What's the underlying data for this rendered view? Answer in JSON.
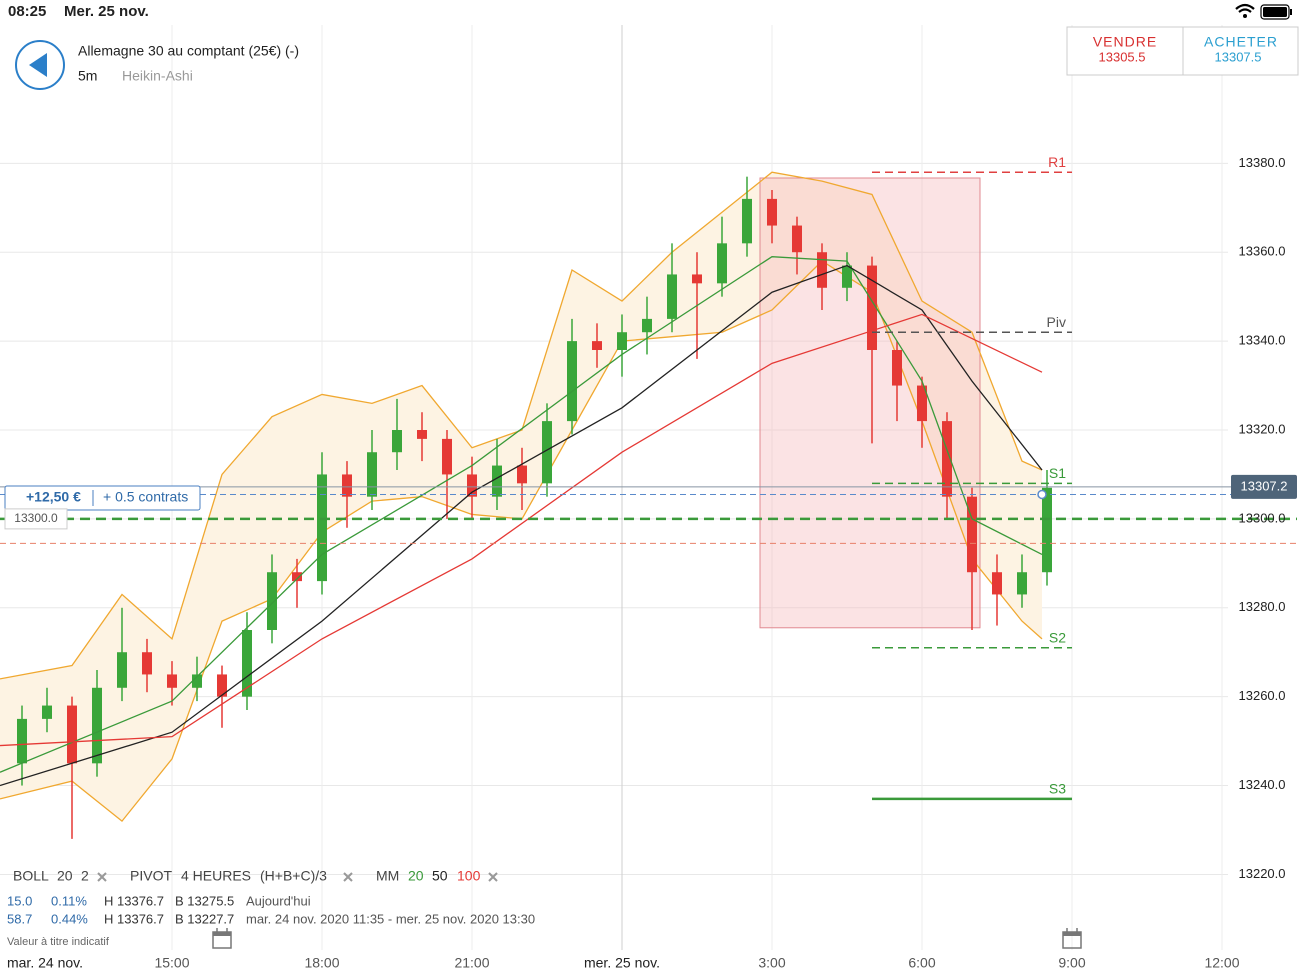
{
  "status_bar": {
    "time": "08:25",
    "date": "Mer. 25 nov."
  },
  "header": {
    "title": "Allemagne 30 au comptant (25€) (-)",
    "interval": "5m",
    "chart_style": "Heikin-Ashi",
    "sell_label": "VENDRE",
    "sell_price": "13305.5",
    "buy_label": "ACHETER",
    "buy_price": "13307.5"
  },
  "position": {
    "pnl": "+12,50 €",
    "size": "+ 0.5 contrats",
    "entry_label": "13300.0"
  },
  "legend": {
    "boll": [
      "BOLL",
      "20",
      "2"
    ],
    "pivot": [
      "PIVOT",
      "4 HEURES",
      "(H+B+C)/3"
    ],
    "mm": "MM",
    "row1": [
      "15.0",
      "0.11%",
      "H 13376.7",
      "B 13275.5",
      "Aujourd'hui"
    ],
    "row2": [
      "58.7",
      "0.44%",
      "H 13376.7",
      "B 13227.7",
      "mar. 24 nov. 2020 11:35 - mer. 25 nov. 2020 13:30"
    ],
    "note": "Valeur à titre indicatif"
  },
  "chart_data": {
    "type": "candlestick",
    "date_left": "mar. 24 nov.",
    "xlim": [
      11.56,
      37.5
    ],
    "ylim": [
      13203,
      13410
    ],
    "xticks": [
      {
        "value": 15,
        "label": "15:00"
      },
      {
        "value": 18,
        "label": "18:00"
      },
      {
        "value": 21,
        "label": "21:00"
      },
      {
        "value": 24,
        "label": "mer. 25 nov."
      },
      {
        "value": 27,
        "label": "3:00"
      },
      {
        "value": 30,
        "label": "6:00"
      },
      {
        "value": 33,
        "label": "9:00"
      },
      {
        "value": 36,
        "label": "12:00"
      }
    ],
    "yticks": [
      {
        "value": 13220,
        "label": "13220.0"
      },
      {
        "value": 13240,
        "label": "13240.0"
      },
      {
        "value": 13260,
        "label": "13260.0"
      },
      {
        "value": 13280,
        "label": "13280.0"
      },
      {
        "value": 13300,
        "label": "13300.0"
      },
      {
        "value": 13320,
        "label": "13320.0"
      },
      {
        "value": 13340,
        "label": "13340.0"
      },
      {
        "value": 13360,
        "label": "13360.0"
      },
      {
        "value": 13380,
        "label": "13380.0"
      }
    ],
    "grid": true,
    "up_color": "#3aa63a",
    "down_color": "#e53935",
    "t": [
      12,
      12.5,
      13,
      13.5,
      14,
      14.5,
      15,
      15.5,
      16,
      16.5,
      17,
      17.5,
      18,
      18.5,
      19,
      19.5,
      20,
      20.5,
      21,
      21.5,
      22,
      22.5,
      23,
      23.5,
      24,
      24.5,
      25,
      25.5,
      26,
      26.5,
      27,
      27.5,
      28,
      28.5,
      29,
      29.5,
      30,
      30.5,
      31,
      31.5,
      32,
      32.5
    ],
    "open": [
      13245,
      13255,
      13258,
      13245,
      13262,
      13270,
      13265,
      13262,
      13265,
      13260,
      13275,
      13288,
      13286,
      13310,
      13305,
      13315,
      13320,
      13318,
      13310,
      13305,
      13312,
      13308,
      13322,
      13340,
      13338,
      13342,
      13345,
      13355,
      13353,
      13362,
      13372,
      13366,
      13360,
      13352,
      13357,
      13338,
      13330,
      13322,
      13305,
      13288,
      13283,
      13288
    ],
    "high": [
      13258,
      13262,
      13260,
      13266,
      13280,
      13273,
      13268,
      13269,
      13267,
      13279,
      13292,
      13291,
      13315,
      13313,
      13320,
      13327,
      13324,
      13320,
      13314,
      13318,
      13316,
      13326,
      13345,
      13344,
      13346,
      13350,
      13362,
      13360,
      13368,
      13377,
      13374,
      13368,
      13362,
      13360,
      13359,
      13340,
      13332,
      13324,
      13307,
      13292,
      13292,
      13311
    ],
    "low": [
      13240,
      13252,
      13228,
      13242,
      13259,
      13261,
      13258,
      13259,
      13253,
      13257,
      13272,
      13280,
      13283,
      13298,
      13302,
      13311,
      13313,
      13300,
      13300,
      13302,
      13302,
      13305,
      13319,
      13334,
      13332,
      13337,
      13342,
      13336,
      13350,
      13359,
      13362,
      13355,
      13347,
      13349,
      13317,
      13322,
      13316,
      13300,
      13275,
      13276,
      13280,
      13285
    ],
    "close": [
      13255,
      13258,
      13245,
      13262,
      13270,
      13265,
      13262,
      13265,
      13260,
      13275,
      13288,
      13286,
      13310,
      13305,
      13315,
      13320,
      13318,
      13310,
      13305,
      13312,
      13308,
      13322,
      13340,
      13338,
      13342,
      13345,
      13355,
      13353,
      13362,
      13372,
      13366,
      13360,
      13352,
      13357,
      13338,
      13330,
      13322,
      13305,
      13288,
      13283,
      13288,
      13307
    ],
    "boll": {
      "color": "#f0a830",
      "fill": "#fdf3e3",
      "t": [
        11.56,
        13,
        14,
        15,
        16,
        17,
        18,
        19,
        20,
        21,
        22,
        23,
        24,
        25,
        26,
        27,
        28,
        29,
        30,
        31,
        32,
        32.4
      ],
      "upper": [
        13264,
        13267,
        13283,
        13273,
        13310,
        13323,
        13328,
        13326,
        13330,
        13316,
        13320,
        13356,
        13349,
        13360,
        13369,
        13378,
        13376,
        13373,
        13349,
        13342,
        13313,
        13311
      ],
      "lower": [
        13237,
        13241,
        13232,
        13246,
        13277,
        13282,
        13297,
        13304,
        13305,
        13301,
        13300,
        13320,
        13340,
        13341,
        13342,
        13347,
        13358,
        13351,
        13322,
        13291,
        13277,
        13273
      ]
    },
    "ma": [
      {
        "name": "20",
        "color": "#3a9a3a",
        "t": [
          11.56,
          15,
          18,
          21,
          24,
          27,
          28.5,
          30,
          31,
          32.4
        ],
        "values": [
          13243,
          13259,
          13292,
          13312,
          13337,
          13359,
          13358,
          13331,
          13300,
          13292
        ]
      },
      {
        "name": "50",
        "color": "#222222",
        "t": [
          11.56,
          15,
          18,
          21,
          24,
          27,
          28.5,
          30,
          31,
          32.4
        ],
        "values": [
          13240,
          13252,
          13277,
          13306,
          13325,
          13351,
          13357,
          13347,
          13331,
          13311
        ]
      },
      {
        "name": "100",
        "color": "#e53935",
        "t": [
          11.56,
          15,
          18,
          21,
          24,
          27,
          30,
          32.4
        ],
        "values": [
          13249,
          13251,
          13273,
          13291,
          13315,
          13335,
          13346,
          13333
        ]
      }
    ],
    "range_box": {
      "t": [
        26.76,
        31.16
      ],
      "high": 13376.7,
      "low": 13275.5,
      "color": "#f4b8bc"
    },
    "pivot_period": [
      29,
      33
    ],
    "pivots": [
      {
        "name": "R1",
        "value": 13378,
        "color": "#e04040",
        "dashed": true
      },
      {
        "name": "Piv",
        "value": 13342,
        "color": "#555555",
        "dashed": true
      },
      {
        "name": "S1",
        "value": 13308,
        "color": "#3a9a3a",
        "dashed": true
      },
      {
        "name": "S2",
        "value": 13271,
        "color": "#3a9a3a",
        "dashed": true
      },
      {
        "name": "S3",
        "value": 13237,
        "color": "#3a9a3a",
        "dashed": false
      }
    ],
    "price_lines": [
      {
        "value": 13307.2,
        "color": "#8795a3",
        "dashed": false
      },
      {
        "value": 13305.5,
        "color": "#5a8acb",
        "dashed": true
      },
      {
        "value": 13300,
        "color": "#3a9a3a",
        "dashed": true
      },
      {
        "value": 13294.5,
        "color": "#e8806a",
        "dashed": true
      }
    ]
  }
}
